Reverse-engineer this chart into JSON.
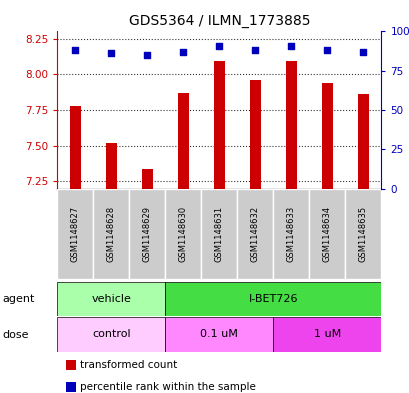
{
  "title": "GDS5364 / ILMN_1773885",
  "samples": [
    "GSM1148627",
    "GSM1148628",
    "GSM1148629",
    "GSM1148630",
    "GSM1148631",
    "GSM1148632",
    "GSM1148633",
    "GSM1148634",
    "GSM1148635"
  ],
  "red_values": [
    7.78,
    7.52,
    7.34,
    7.87,
    8.09,
    7.96,
    8.09,
    7.94,
    7.86
  ],
  "blue_percentiles": [
    88,
    86,
    85,
    87,
    91,
    88,
    91,
    88,
    87
  ],
  "ylim_left": [
    7.2,
    8.3
  ],
  "ylim_right": [
    0,
    100
  ],
  "yticks_left": [
    7.25,
    7.5,
    7.75,
    8.0,
    8.25
  ],
  "yticks_right": [
    0,
    25,
    50,
    75,
    100
  ],
  "ytick_right_labels": [
    "0",
    "25",
    "50",
    "75",
    "100%"
  ],
  "bar_color": "#cc0000",
  "dot_color": "#0000bb",
  "agent_groups": [
    {
      "label": "vehicle",
      "start": 0,
      "end": 3,
      "color": "#aaffaa"
    },
    {
      "label": "I-BET726",
      "start": 3,
      "end": 9,
      "color": "#44dd44"
    }
  ],
  "dose_groups": [
    {
      "label": "control",
      "start": 0,
      "end": 3,
      "color": "#ffccff"
    },
    {
      "label": "0.1 uM",
      "start": 3,
      "end": 6,
      "color": "#ff88ff"
    },
    {
      "label": "1 uM",
      "start": 6,
      "end": 9,
      "color": "#ee44ee"
    }
  ],
  "legend_items": [
    {
      "color": "#cc0000",
      "label": "transformed count"
    },
    {
      "color": "#0000bb",
      "label": "percentile rank within the sample"
    }
  ],
  "label_agent": "agent",
  "label_dose": "dose",
  "tick_color_left": "#cc0000",
  "tick_color_right": "#0000bb",
  "bar_width": 0.3,
  "sample_box_color": "#cccccc"
}
